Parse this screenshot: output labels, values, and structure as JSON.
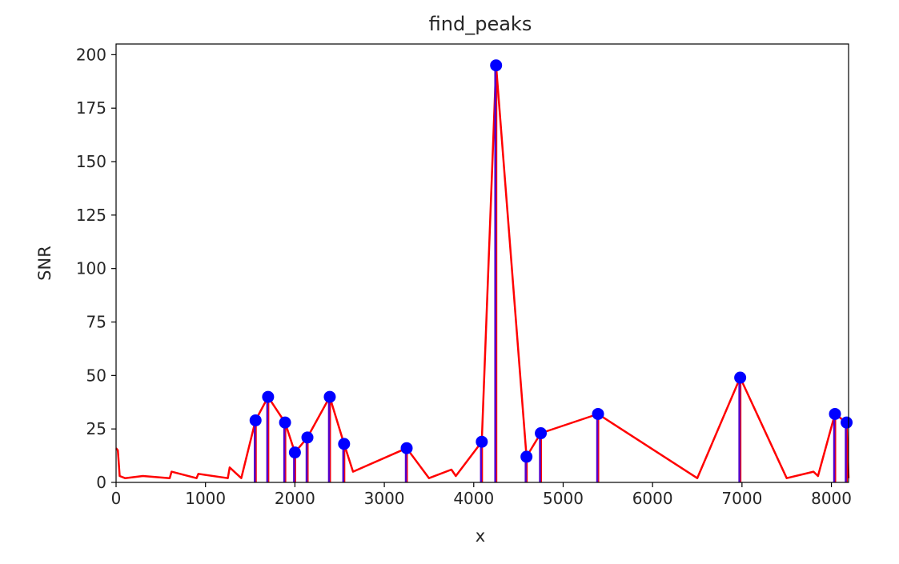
{
  "chart_data": {
    "type": "line",
    "title": "find_peaks",
    "xlabel": "x",
    "ylabel": "SNR",
    "xlim": [
      0,
      8192
    ],
    "ylim": [
      0,
      205
    ],
    "xticks": [
      0,
      1000,
      2000,
      3000,
      4000,
      5000,
      6000,
      7000,
      8000
    ],
    "yticks": [
      0,
      25,
      50,
      75,
      100,
      125,
      150,
      175,
      200
    ],
    "grid": false,
    "legend": "none",
    "colors": {
      "signal": "#ff0000",
      "peaks": "#0000ff",
      "stems": "#5500cc",
      "axes": "#000000"
    },
    "series": [
      {
        "role": "signal",
        "x": [
          0,
          20,
          40,
          100,
          300,
          600,
          620,
          900,
          920,
          1250,
          1270,
          1400,
          1560,
          1700,
          1890,
          2000,
          2140,
          2390,
          2550,
          2650,
          3250,
          3500,
          3750,
          3800,
          4090,
          4250,
          4590,
          4750,
          5390,
          6500,
          6980,
          7500,
          7800,
          7850,
          8040,
          8170,
          8192
        ],
        "y": [
          16,
          15,
          3,
          2,
          3,
          2,
          5,
          2,
          4,
          2,
          7,
          2,
          29,
          40,
          28,
          14,
          21,
          40,
          18,
          5,
          16,
          2,
          6,
          3,
          19,
          195,
          12,
          23,
          32,
          2,
          49,
          2,
          5,
          3,
          32,
          28,
          2
        ]
      },
      {
        "role": "peaks",
        "x": [
          1560,
          1700,
          1890,
          2000,
          2140,
          2390,
          2550,
          3250,
          4090,
          4250,
          4590,
          4750,
          5390,
          6980,
          8040,
          8170
        ],
        "y": [
          29,
          40,
          28,
          14,
          21,
          40,
          18,
          16,
          19,
          195,
          12,
          23,
          32,
          49,
          32,
          28
        ]
      }
    ]
  }
}
